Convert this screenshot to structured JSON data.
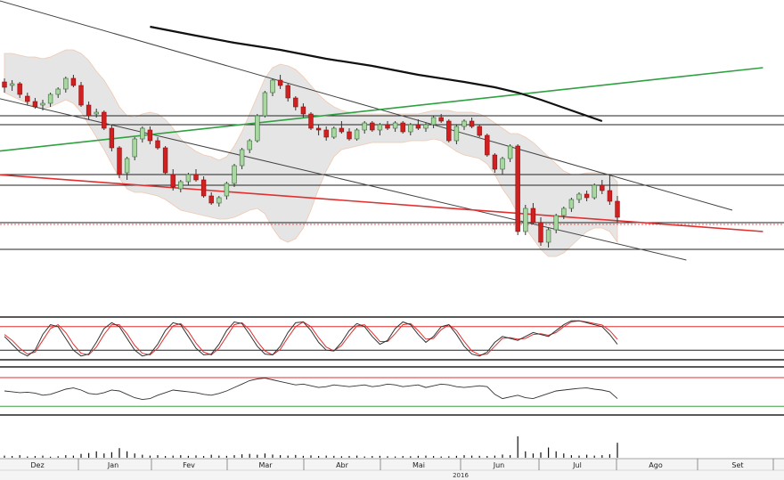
{
  "colors": {
    "background": "#ffffff",
    "band_fill": "#dcdcdc",
    "up_candle": "#a8d8a0",
    "down_candle": "#d02020",
    "wick": "#333333",
    "trend_line": "#444444",
    "support_trend": "#e03030",
    "rising_trend": "#30a040",
    "moving_average": "#111111",
    "osc_red": "#e03030",
    "osc_line": "#333333",
    "green_ref": "#40a040"
  },
  "chart_data": [
    {
      "type": "candlestick",
      "title": "",
      "xlabel": "",
      "ylabel": "",
      "x_tick_labels": [
        "Dez",
        "Jan",
        "Fev",
        "Mar",
        "Abr",
        "Mai",
        "Jun",
        "Jul",
        "Ago",
        "Set"
      ],
      "year_label": "2016",
      "grid": false,
      "legend": "none",
      "y_axis_labels": "none",
      "candles": [
        {
          "o": 0.44,
          "h": 0.46,
          "l": 0.38,
          "c": 0.41
        },
        {
          "o": 0.42,
          "h": 0.45,
          "l": 0.39,
          "c": 0.43
        },
        {
          "o": 0.43,
          "h": 0.44,
          "l": 0.35,
          "c": 0.37
        },
        {
          "o": 0.36,
          "h": 0.38,
          "l": 0.31,
          "c": 0.33
        },
        {
          "o": 0.33,
          "h": 0.35,
          "l": 0.29,
          "c": 0.3
        },
        {
          "o": 0.31,
          "h": 0.34,
          "l": 0.28,
          "c": 0.32
        },
        {
          "o": 0.32,
          "h": 0.38,
          "l": 0.3,
          "c": 0.37
        },
        {
          "o": 0.37,
          "h": 0.41,
          "l": 0.35,
          "c": 0.4
        },
        {
          "o": 0.4,
          "h": 0.47,
          "l": 0.38,
          "c": 0.46
        },
        {
          "o": 0.46,
          "h": 0.48,
          "l": 0.41,
          "c": 0.42
        },
        {
          "o": 0.42,
          "h": 0.44,
          "l": 0.3,
          "c": 0.31
        },
        {
          "o": 0.31,
          "h": 0.33,
          "l": 0.23,
          "c": 0.25
        },
        {
          "o": 0.26,
          "h": 0.29,
          "l": 0.24,
          "c": 0.27
        },
        {
          "o": 0.27,
          "h": 0.28,
          "l": 0.17,
          "c": 0.18
        },
        {
          "o": 0.18,
          "h": 0.2,
          "l": 0.05,
          "c": 0.07
        },
        {
          "o": 0.07,
          "h": 0.08,
          "l": -0.1,
          "c": -0.08
        },
        {
          "o": -0.07,
          "h": 0.02,
          "l": -0.11,
          "c": 0.01
        },
        {
          "o": 0.02,
          "h": 0.13,
          "l": 0.0,
          "c": 0.12
        },
        {
          "o": 0.12,
          "h": 0.19,
          "l": 0.1,
          "c": 0.18
        },
        {
          "o": 0.17,
          "h": 0.19,
          "l": 0.09,
          "c": 0.11
        },
        {
          "o": 0.11,
          "h": 0.13,
          "l": 0.06,
          "c": 0.07
        },
        {
          "o": 0.07,
          "h": 0.08,
          "l": -0.08,
          "c": -0.07
        },
        {
          "o": -0.08,
          "h": -0.05,
          "l": -0.17,
          "c": -0.15
        },
        {
          "o": -0.16,
          "h": -0.11,
          "l": -0.18,
          "c": -0.12
        },
        {
          "o": -0.12,
          "h": -0.07,
          "l": -0.14,
          "c": -0.08
        },
        {
          "o": -0.08,
          "h": -0.05,
          "l": -0.12,
          "c": -0.11
        },
        {
          "o": -0.11,
          "h": -0.09,
          "l": -0.21,
          "c": -0.2
        },
        {
          "o": -0.2,
          "h": -0.18,
          "l": -0.25,
          "c": -0.24
        },
        {
          "o": -0.24,
          "h": -0.2,
          "l": -0.26,
          "c": -0.21
        },
        {
          "o": -0.2,
          "h": -0.12,
          "l": -0.22,
          "c": -0.13
        },
        {
          "o": -0.13,
          "h": -0.02,
          "l": -0.15,
          "c": -0.03
        },
        {
          "o": -0.03,
          "h": 0.07,
          "l": -0.05,
          "c": 0.06
        },
        {
          "o": 0.06,
          "h": 0.12,
          "l": 0.04,
          "c": 0.11
        },
        {
          "o": 0.11,
          "h": 0.26,
          "l": 0.1,
          "c": 0.25
        },
        {
          "o": 0.25,
          "h": 0.39,
          "l": 0.24,
          "c": 0.38
        },
        {
          "o": 0.38,
          "h": 0.46,
          "l": 0.36,
          "c": 0.45
        },
        {
          "o": 0.45,
          "h": 0.48,
          "l": 0.4,
          "c": 0.42
        },
        {
          "o": 0.42,
          "h": 0.43,
          "l": 0.33,
          "c": 0.35
        },
        {
          "o": 0.35,
          "h": 0.36,
          "l": 0.28,
          "c": 0.3
        },
        {
          "o": 0.3,
          "h": 0.32,
          "l": 0.24,
          "c": 0.26
        },
        {
          "o": 0.26,
          "h": 0.27,
          "l": 0.17,
          "c": 0.18
        },
        {
          "o": 0.18,
          "h": 0.2,
          "l": 0.14,
          "c": 0.17
        },
        {
          "o": 0.17,
          "h": 0.19,
          "l": 0.11,
          "c": 0.13
        },
        {
          "o": 0.13,
          "h": 0.19,
          "l": 0.12,
          "c": 0.18
        },
        {
          "o": 0.18,
          "h": 0.22,
          "l": 0.15,
          "c": 0.16
        },
        {
          "o": 0.16,
          "h": 0.18,
          "l": 0.11,
          "c": 0.12
        },
        {
          "o": 0.12,
          "h": 0.18,
          "l": 0.11,
          "c": 0.17
        },
        {
          "o": 0.17,
          "h": 0.22,
          "l": 0.15,
          "c": 0.21
        },
        {
          "o": 0.21,
          "h": 0.22,
          "l": 0.16,
          "c": 0.17
        },
        {
          "o": 0.17,
          "h": 0.21,
          "l": 0.14,
          "c": 0.2
        },
        {
          "o": 0.2,
          "h": 0.22,
          "l": 0.17,
          "c": 0.18
        },
        {
          "o": 0.18,
          "h": 0.22,
          "l": 0.16,
          "c": 0.21
        },
        {
          "o": 0.21,
          "h": 0.22,
          "l": 0.15,
          "c": 0.16
        },
        {
          "o": 0.16,
          "h": 0.21,
          "l": 0.14,
          "c": 0.2
        },
        {
          "o": 0.2,
          "h": 0.23,
          "l": 0.17,
          "c": 0.18
        },
        {
          "o": 0.18,
          "h": 0.21,
          "l": 0.16,
          "c": 0.2
        },
        {
          "o": 0.2,
          "h": 0.25,
          "l": 0.18,
          "c": 0.24
        },
        {
          "o": 0.24,
          "h": 0.26,
          "l": 0.21,
          "c": 0.22
        },
        {
          "o": 0.22,
          "h": 0.23,
          "l": 0.1,
          "c": 0.11
        },
        {
          "o": 0.11,
          "h": 0.2,
          "l": 0.09,
          "c": 0.19
        },
        {
          "o": 0.19,
          "h": 0.23,
          "l": 0.17,
          "c": 0.22
        },
        {
          "o": 0.22,
          "h": 0.24,
          "l": 0.18,
          "c": 0.19
        },
        {
          "o": 0.19,
          "h": 0.2,
          "l": 0.13,
          "c": 0.14
        },
        {
          "o": 0.14,
          "h": 0.15,
          "l": 0.02,
          "c": 0.03
        },
        {
          "o": 0.03,
          "h": 0.04,
          "l": -0.07,
          "c": -0.05
        },
        {
          "o": -0.05,
          "h": 0.02,
          "l": -0.08,
          "c": 0.01
        },
        {
          "o": 0.01,
          "h": 0.09,
          "l": -0.01,
          "c": 0.08
        },
        {
          "o": 0.08,
          "h": 0.09,
          "l": -0.42,
          "c": -0.4
        },
        {
          "o": -0.4,
          "h": -0.25,
          "l": -0.42,
          "c": -0.27
        },
        {
          "o": -0.27,
          "h": -0.24,
          "l": -0.36,
          "c": -0.35
        },
        {
          "o": -0.35,
          "h": -0.32,
          "l": -0.48,
          "c": -0.46
        },
        {
          "o": -0.46,
          "h": -0.38,
          "l": -0.49,
          "c": -0.39
        },
        {
          "o": -0.39,
          "h": -0.3,
          "l": -0.41,
          "c": -0.31
        },
        {
          "o": -0.31,
          "h": -0.26,
          "l": -0.33,
          "c": -0.27
        },
        {
          "o": -0.27,
          "h": -0.21,
          "l": -0.29,
          "c": -0.22
        },
        {
          "o": -0.22,
          "h": -0.18,
          "l": -0.24,
          "c": -0.19
        },
        {
          "o": -0.19,
          "h": -0.17,
          "l": -0.23,
          "c": -0.21
        },
        {
          "o": -0.21,
          "h": -0.13,
          "l": -0.22,
          "c": -0.14
        },
        {
          "o": -0.14,
          "h": -0.11,
          "l": -0.19,
          "c": -0.17
        },
        {
          "o": -0.17,
          "h": -0.08,
          "l": -0.25,
          "c": -0.23
        },
        {
          "o": -0.23,
          "h": -0.2,
          "l": -0.35,
          "c": -0.32
        }
      ],
      "envelope_upper": [
        0.6,
        0.6,
        0.59,
        0.58,
        0.58,
        0.57,
        0.58,
        0.6,
        0.62,
        0.62,
        0.6,
        0.56,
        0.5,
        0.45,
        0.38,
        0.3,
        0.25,
        0.24,
        0.26,
        0.27,
        0.26,
        0.23,
        0.18,
        0.12,
        0.08,
        0.05,
        0.03,
        0.02,
        0.0,
        0.02,
        0.08,
        0.16,
        0.26,
        0.36,
        0.46,
        0.52,
        0.54,
        0.53,
        0.51,
        0.47,
        0.42,
        0.37,
        0.33,
        0.3,
        0.28,
        0.27,
        0.26,
        0.26,
        0.26,
        0.26,
        0.26,
        0.26,
        0.26,
        0.26,
        0.26,
        0.27,
        0.28,
        0.28,
        0.28,
        0.27,
        0.27,
        0.27,
        0.26,
        0.24,
        0.21,
        0.18,
        0.15,
        0.15,
        0.13,
        0.1,
        0.06,
        0.02,
        -0.02,
        -0.06,
        -0.08,
        -0.08,
        -0.07,
        -0.07,
        -0.07,
        -0.08,
        -0.12
      ],
      "envelope_lower": [
        0.38,
        0.36,
        0.34,
        0.32,
        0.3,
        0.29,
        0.3,
        0.32,
        0.34,
        0.32,
        0.27,
        0.2,
        0.13,
        0.06,
        -0.02,
        -0.1,
        -0.16,
        -0.18,
        -0.18,
        -0.19,
        -0.2,
        -0.22,
        -0.25,
        -0.28,
        -0.29,
        -0.3,
        -0.31,
        -0.32,
        -0.33,
        -0.33,
        -0.32,
        -0.3,
        -0.28,
        -0.27,
        -0.3,
        -0.38,
        -0.44,
        -0.46,
        -0.44,
        -0.38,
        -0.28,
        -0.16,
        -0.06,
        0.02,
        0.06,
        0.07,
        0.08,
        0.09,
        0.1,
        0.1,
        0.1,
        0.1,
        0.1,
        0.11,
        0.11,
        0.11,
        0.12,
        0.11,
        0.08,
        0.05,
        0.03,
        0.02,
        0.01,
        -0.02,
        -0.08,
        -0.16,
        -0.22,
        -0.3,
        -0.38,
        -0.44,
        -0.5,
        -0.54,
        -0.54,
        -0.52,
        -0.48,
        -0.44,
        -0.4,
        -0.38,
        -0.38,
        -0.4,
        -0.46
      ],
      "moving_average": [
        {
          "x": 19,
          "y": 0.75
        },
        {
          "x": 25,
          "y": 0.7
        },
        {
          "x": 30,
          "y": 0.66
        },
        {
          "x": 36,
          "y": 0.62
        },
        {
          "x": 42,
          "y": 0.57
        },
        {
          "x": 48,
          "y": 0.53
        },
        {
          "x": 54,
          "y": 0.48
        },
        {
          "x": 60,
          "y": 0.44
        },
        {
          "x": 64,
          "y": 0.41
        },
        {
          "x": 67,
          "y": 0.38
        },
        {
          "x": 70,
          "y": 0.34
        },
        {
          "x": 74,
          "y": 0.28
        },
        {
          "x": 78,
          "y": 0.22
        }
      ],
      "trend_lines": [
        {
          "name": "channel_top",
          "color": "trend_line",
          "points": [
            {
              "x": -1,
              "y": 0.9
            },
            {
              "x": 95,
              "y": -0.28
            }
          ]
        },
        {
          "name": "channel_bottom",
          "color": "trend_line",
          "points": [
            {
              "x": -1,
              "y": 0.35
            },
            {
              "x": 89,
              "y": -0.56
            }
          ]
        },
        {
          "name": "support",
          "color": "support_trend",
          "points": [
            {
              "x": -1,
              "y": -0.08
            },
            {
              "x": 99,
              "y": -0.4
            }
          ]
        },
        {
          "name": "rising",
          "color": "rising_trend",
          "points": [
            {
              "x": -1,
              "y": 0.05
            },
            {
              "x": 99,
              "y": 0.52
            }
          ]
        }
      ],
      "horizontal_levels": [
        0.25,
        0.2,
        -0.08,
        -0.14,
        -0.35,
        -0.5
      ],
      "dotted_level": -0.36,
      "stochastic_k": [
        0.55,
        0.35,
        0.15,
        0.05,
        0.2,
        0.6,
        0.85,
        0.8,
        0.5,
        0.2,
        0.05,
        0.1,
        0.4,
        0.75,
        0.9,
        0.8,
        0.5,
        0.2,
        0.05,
        0.1,
        0.35,
        0.7,
        0.9,
        0.85,
        0.55,
        0.25,
        0.08,
        0.1,
        0.35,
        0.7,
        0.92,
        0.88,
        0.6,
        0.3,
        0.1,
        0.08,
        0.3,
        0.65,
        0.9,
        0.92,
        0.7,
        0.4,
        0.2,
        0.18,
        0.4,
        0.7,
        0.88,
        0.8,
        0.55,
        0.35,
        0.45,
        0.75,
        0.92,
        0.85,
        0.6,
        0.4,
        0.55,
        0.8,
        0.85,
        0.6,
        0.3,
        0.1,
        0.05,
        0.15,
        0.4,
        0.55,
        0.5,
        0.45,
        0.55,
        0.65,
        0.6,
        0.55,
        0.7,
        0.85,
        0.95,
        0.95,
        0.9,
        0.85,
        0.8,
        0.6,
        0.35
      ],
      "stochastic_d": [
        0.6,
        0.45,
        0.25,
        0.1,
        0.15,
        0.45,
        0.75,
        0.85,
        0.65,
        0.35,
        0.12,
        0.08,
        0.28,
        0.6,
        0.85,
        0.85,
        0.62,
        0.32,
        0.12,
        0.08,
        0.25,
        0.55,
        0.82,
        0.88,
        0.68,
        0.38,
        0.15,
        0.08,
        0.25,
        0.55,
        0.85,
        0.9,
        0.72,
        0.42,
        0.18,
        0.08,
        0.22,
        0.52,
        0.8,
        0.92,
        0.8,
        0.52,
        0.28,
        0.18,
        0.32,
        0.58,
        0.82,
        0.85,
        0.65,
        0.42,
        0.42,
        0.62,
        0.85,
        0.88,
        0.7,
        0.48,
        0.5,
        0.72,
        0.85,
        0.7,
        0.42,
        0.18,
        0.08,
        0.1,
        0.3,
        0.5,
        0.52,
        0.48,
        0.5,
        0.6,
        0.62,
        0.58,
        0.65,
        0.8,
        0.92,
        0.95,
        0.92,
        0.88,
        0.84,
        0.7,
        0.48
      ],
      "stochastic_bounds": [
        0.8,
        0.2
      ],
      "momentum": [
        0.48,
        0.46,
        0.44,
        0.45,
        0.43,
        0.38,
        0.4,
        0.46,
        0.52,
        0.55,
        0.5,
        0.42,
        0.4,
        0.44,
        0.5,
        0.48,
        0.4,
        0.32,
        0.28,
        0.3,
        0.38,
        0.44,
        0.5,
        0.48,
        0.46,
        0.44,
        0.4,
        0.38,
        0.42,
        0.48,
        0.56,
        0.64,
        0.72,
        0.76,
        0.78,
        0.74,
        0.7,
        0.66,
        0.62,
        0.64,
        0.6,
        0.56,
        0.58,
        0.62,
        0.6,
        0.58,
        0.6,
        0.62,
        0.58,
        0.6,
        0.64,
        0.62,
        0.58,
        0.6,
        0.62,
        0.56,
        0.6,
        0.64,
        0.62,
        0.58,
        0.56,
        0.58,
        0.6,
        0.58,
        0.4,
        0.3,
        0.34,
        0.38,
        0.32,
        0.3,
        0.36,
        0.42,
        0.48,
        0.5,
        0.52,
        0.54,
        0.55,
        0.52,
        0.5,
        0.46,
        0.3
      ],
      "momentum_reference": 0.12,
      "volume": [
        0.1,
        0.08,
        0.12,
        0.06,
        0.08,
        0.1,
        0.05,
        0.07,
        0.12,
        0.1,
        0.18,
        0.22,
        0.3,
        0.2,
        0.26,
        0.45,
        0.3,
        0.2,
        0.14,
        0.1,
        0.12,
        0.08,
        0.1,
        0.12,
        0.09,
        0.11,
        0.08,
        0.14,
        0.1,
        0.09,
        0.12,
        0.16,
        0.18,
        0.14,
        0.2,
        0.15,
        0.12,
        0.1,
        0.13,
        0.09,
        0.11,
        0.08,
        0.1,
        0.09,
        0.07,
        0.08,
        0.1,
        0.06,
        0.08,
        0.09,
        0.07,
        0.06,
        0.08,
        0.07,
        0.09,
        0.1,
        0.08,
        0.06,
        0.07,
        0.09,
        0.12,
        0.1,
        0.09,
        0.08,
        0.1,
        0.15,
        0.12,
        1.0,
        0.3,
        0.2,
        0.25,
        0.48,
        0.3,
        0.2,
        0.12,
        0.1,
        0.14,
        0.1,
        0.12,
        0.16,
        0.7
      ]
    }
  ]
}
